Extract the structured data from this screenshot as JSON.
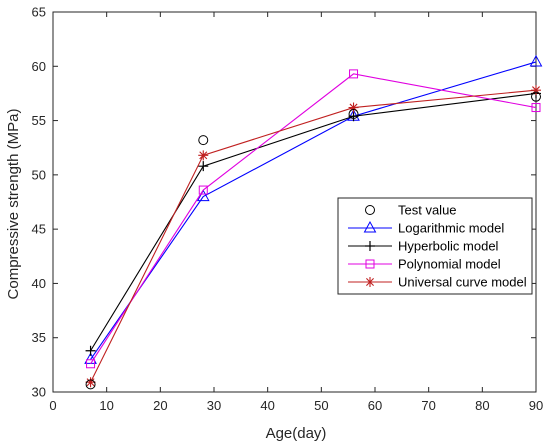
{
  "chart_data": {
    "type": "line",
    "title": "",
    "xlabel": "Age(day)",
    "ylabel": "Compressive strength (MPa)",
    "xlim": [
      0,
      90
    ],
    "ylim": [
      30,
      65
    ],
    "xticks": [
      0,
      10,
      20,
      30,
      40,
      50,
      60,
      70,
      80,
      90
    ],
    "yticks": [
      30,
      35,
      40,
      45,
      50,
      55,
      60,
      65
    ],
    "grid": false,
    "legend_position": "lower-right",
    "x": [
      7,
      28,
      56,
      90
    ],
    "series": [
      {
        "name": "Test value",
        "values": [
          30.7,
          53.2,
          55.6,
          57.2
        ],
        "color": "#000000",
        "marker": "circle",
        "line": false
      },
      {
        "name": "Logarithmic model",
        "values": [
          33.0,
          48.0,
          55.4,
          60.4
        ],
        "color": "#0000ff",
        "marker": "triangle",
        "line": true
      },
      {
        "name": "Hyperbolic model",
        "values": [
          33.8,
          50.8,
          55.4,
          57.5
        ],
        "color": "#000000",
        "marker": "plus",
        "line": true
      },
      {
        "name": "Polynomial model",
        "values": [
          32.6,
          48.6,
          59.3,
          56.2
        ],
        "color": "#e000e0",
        "marker": "square",
        "line": true
      },
      {
        "name": "Universal curve model",
        "values": [
          30.9,
          51.8,
          56.2,
          57.8
        ],
        "color": "#c02020",
        "marker": "asterisk",
        "line": true
      }
    ]
  }
}
